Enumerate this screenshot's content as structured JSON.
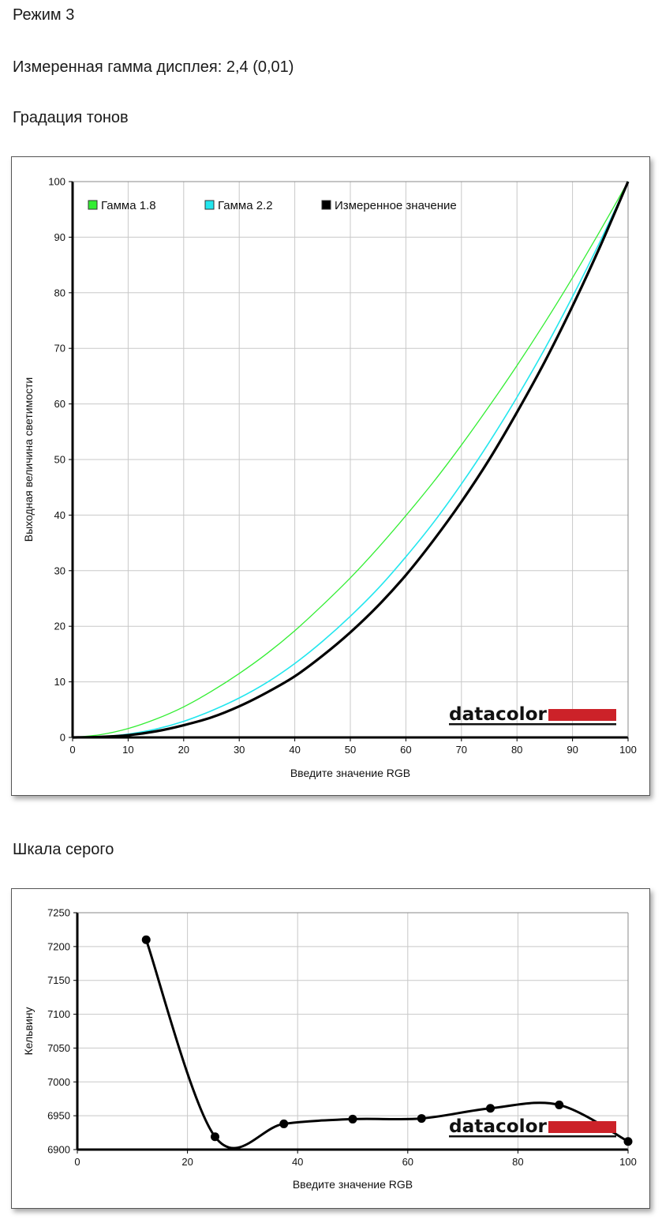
{
  "mode_title": "Режим 3",
  "measured_gamma": "Измеренная гамма дисплея: 2,4 (0,01)",
  "tone_heading": "Градация тонов",
  "gray_heading": "Шкала серого",
  "logo": "datacolor",
  "colors": {
    "gamma18": "#33ee33",
    "gamma22": "#22e6ee",
    "measured": "#000000",
    "logo_bar": "#cc2229",
    "grid": "#c8c8c8"
  },
  "chart_data": [
    {
      "type": "line",
      "xlabel": "Введите значение RGB",
      "ylabel": "Выходная величина светимости",
      "xlim": [
        0,
        100
      ],
      "ylim": [
        0,
        100
      ],
      "xticks": [
        "0",
        "10",
        "20",
        "30",
        "40",
        "50",
        "60",
        "70",
        "80",
        "90",
        "100"
      ],
      "yticks": [
        "0",
        "10",
        "20",
        "30",
        "40",
        "50",
        "60",
        "70",
        "80",
        "90",
        "100"
      ],
      "grid": true,
      "legend_position": "top-left",
      "series": [
        {
          "name": "Гамма 1.8",
          "color": "#33ee33",
          "x": [
            0,
            5,
            10,
            15,
            20,
            25,
            30,
            35,
            40,
            45,
            50,
            55,
            60,
            65,
            70,
            75,
            80,
            85,
            90,
            95,
            100
          ],
          "y": [
            0,
            0.5,
            1.6,
            3.3,
            5.5,
            8.3,
            11.5,
            15.1,
            19.2,
            23.8,
            28.7,
            34.1,
            39.9,
            46.0,
            52.6,
            59.6,
            66.9,
            74.6,
            82.7,
            91.2,
            100
          ]
        },
        {
          "name": "Гамма 2.2",
          "color": "#22e6ee",
          "x": [
            0,
            5,
            10,
            15,
            20,
            25,
            30,
            35,
            40,
            45,
            50,
            55,
            60,
            65,
            70,
            75,
            80,
            85,
            90,
            95,
            100
          ],
          "y": [
            0,
            0.1,
            0.6,
            1.5,
            2.9,
            4.8,
            7.1,
            9.9,
            13.3,
            17.3,
            21.8,
            26.8,
            32.5,
            38.7,
            45.6,
            53.1,
            61.2,
            69.9,
            79.3,
            89.3,
            100
          ]
        },
        {
          "name": "Измеренное значение",
          "color": "#000000",
          "x": [
            0,
            5,
            10,
            15,
            20,
            25,
            30,
            35,
            40,
            45,
            50,
            55,
            60,
            65,
            70,
            75,
            80,
            85,
            90,
            95,
            100
          ],
          "y": [
            0,
            0.1,
            0.4,
            1.1,
            2.2,
            3.6,
            5.6,
            8.1,
            11.0,
            14.7,
            18.9,
            23.7,
            29.2,
            35.5,
            42.4,
            50.0,
            58.5,
            67.6,
            77.6,
            88.4,
            100
          ]
        }
      ]
    },
    {
      "type": "line",
      "xlabel": "Введите значение RGB",
      "ylabel": "Кельвину",
      "xlim": [
        0,
        100
      ],
      "ylim": [
        6900,
        7250
      ],
      "xticks": [
        "0",
        "20",
        "40",
        "60",
        "80",
        "100"
      ],
      "yticks": [
        "6900",
        "6950",
        "7000",
        "7050",
        "7100",
        "7150",
        "7200",
        "7250"
      ],
      "grid": true,
      "series": [
        {
          "name": "",
          "color": "#000000",
          "x": [
            12.5,
            25,
            37.5,
            50,
            62.5,
            75,
            87.5,
            100
          ],
          "y": [
            7210,
            6919,
            6938,
            6945,
            6946,
            6961,
            6966,
            6912
          ]
        }
      ]
    }
  ]
}
